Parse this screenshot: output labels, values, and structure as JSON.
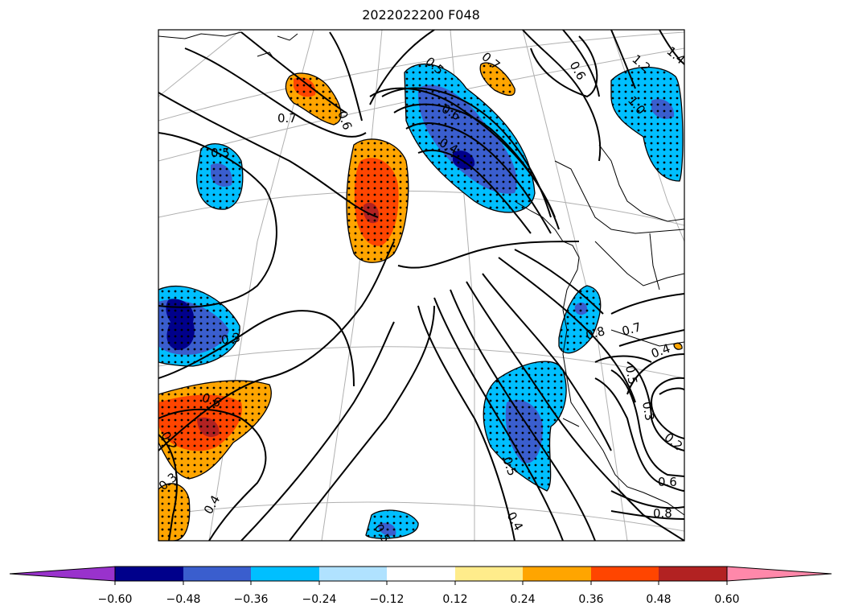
{
  "title": "2022022200 F048",
  "colorbar": {
    "colors": [
      "#9932CC",
      "#00008B",
      "#3A5ECE",
      "#00BFFF",
      "#B0E2FF",
      "#FFFFFF",
      "#FFEC8B",
      "#FFA500",
      "#FF4500",
      "#B22222",
      "#FF88AA"
    ],
    "tick_labels": [
      "−0.60",
      "−0.48",
      "−0.36",
      "−0.24",
      "−0.12",
      "0.12",
      "0.24",
      "0.36",
      "0.48",
      "0.60"
    ]
  },
  "contour_labels": [
    "0.7",
    "0.6",
    "0.7",
    "0.6",
    "1.2",
    "1.4",
    "1.0",
    "0.5",
    "0.4",
    "0.6",
    "0.5",
    "0.6",
    "0.2",
    "0.3",
    "0.4",
    "0.3",
    "0.5",
    "0.4",
    "0.8",
    "0.7",
    "0.4",
    "0.5",
    "0.3",
    "0.2",
    "0.6",
    "0.8",
    "0.5"
  ],
  "stipple_color": "#000000",
  "contour_color": "#000000",
  "graticule_color": "#b0b0b0"
}
